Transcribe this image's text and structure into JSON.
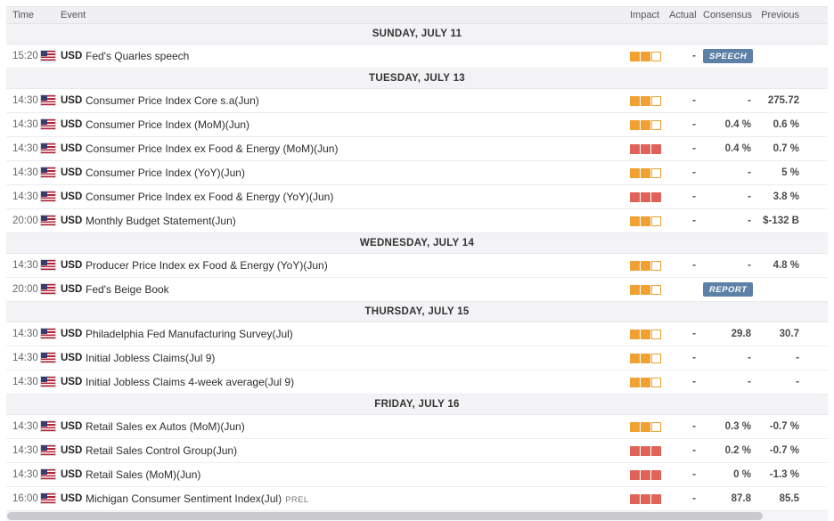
{
  "header": {
    "time": "Time",
    "event": "Event",
    "impact": "Impact",
    "actual": "Actual",
    "consensus": "Consensus",
    "previous": "Previous"
  },
  "colors": {
    "impact_medium": "#f0a132",
    "impact_high": "#e0635a",
    "badge_bg": "#5d80a7"
  },
  "sections": [
    {
      "date": "SUNDAY, JULY 11",
      "rows": [
        {
          "time": "15:20",
          "currency": "USD",
          "event": "Fed's Quarles speech",
          "impact": "medium",
          "actual": "-",
          "badge": "SPEECH",
          "consensus": "",
          "previous": ""
        }
      ]
    },
    {
      "date": "TUESDAY, JULY 13",
      "rows": [
        {
          "time": "14:30",
          "currency": "USD",
          "event": "Consumer Price Index Core s.a(Jun)",
          "impact": "medium",
          "actual": "-",
          "consensus": "-",
          "previous": "275.72"
        },
        {
          "time": "14:30",
          "currency": "USD",
          "event": "Consumer Price Index (MoM)(Jun)",
          "impact": "medium",
          "actual": "-",
          "consensus": "0.4 %",
          "previous": "0.6 %"
        },
        {
          "time": "14:30",
          "currency": "USD",
          "event": "Consumer Price Index ex Food & Energy (MoM)(Jun)",
          "impact": "high",
          "actual": "-",
          "consensus": "0.4 %",
          "previous": "0.7 %"
        },
        {
          "time": "14:30",
          "currency": "USD",
          "event": "Consumer Price Index (YoY)(Jun)",
          "impact": "medium",
          "actual": "-",
          "consensus": "-",
          "previous": "5 %"
        },
        {
          "time": "14:30",
          "currency": "USD",
          "event": "Consumer Price Index ex Food & Energy (YoY)(Jun)",
          "impact": "high",
          "actual": "-",
          "consensus": "-",
          "previous": "3.8 %"
        },
        {
          "time": "20:00",
          "currency": "USD",
          "event": "Monthly Budget Statement(Jun)",
          "impact": "medium",
          "actual": "-",
          "consensus": "-",
          "previous": "$-132 B"
        }
      ]
    },
    {
      "date": "WEDNESDAY, JULY 14",
      "rows": [
        {
          "time": "14:30",
          "currency": "USD",
          "event": "Producer Price Index ex Food & Energy (YoY)(Jun)",
          "impact": "medium",
          "actual": "-",
          "consensus": "-",
          "previous": "4.8 %"
        },
        {
          "time": "20:00",
          "currency": "USD",
          "event": "Fed's Beige Book",
          "impact": "medium",
          "actual": "",
          "badge": "REPORT",
          "consensus": "",
          "previous": ""
        }
      ]
    },
    {
      "date": "THURSDAY, JULY 15",
      "rows": [
        {
          "time": "14:30",
          "currency": "USD",
          "event": "Philadelphia Fed Manufacturing Survey(Jul)",
          "impact": "medium",
          "actual": "-",
          "consensus": "29.8",
          "previous": "30.7"
        },
        {
          "time": "14:30",
          "currency": "USD",
          "event": "Initial Jobless Claims(Jul 9)",
          "impact": "medium",
          "actual": "-",
          "consensus": "-",
          "previous": "-"
        },
        {
          "time": "14:30",
          "currency": "USD",
          "event": "Initial Jobless Claims 4-week average(Jul 9)",
          "impact": "medium",
          "actual": "-",
          "consensus": "-",
          "previous": "-"
        }
      ]
    },
    {
      "date": "FRIDAY, JULY 16",
      "rows": [
        {
          "time": "14:30",
          "currency": "USD",
          "event": "Retail Sales ex Autos (MoM)(Jun)",
          "impact": "medium",
          "actual": "-",
          "consensus": "0.3 %",
          "previous": "-0.7 %"
        },
        {
          "time": "14:30",
          "currency": "USD",
          "event": "Retail Sales Control Group(Jun)",
          "impact": "high",
          "actual": "-",
          "consensus": "0.2 %",
          "previous": "-0.7 %"
        },
        {
          "time": "14:30",
          "currency": "USD",
          "event": "Retail Sales (MoM)(Jun)",
          "impact": "high",
          "actual": "-",
          "consensus": "0 %",
          "previous": "-1.3 %"
        },
        {
          "time": "16:00",
          "currency": "USD",
          "event": "Michigan Consumer Sentiment Index(Jul)",
          "suffix": "PREL",
          "impact": "high",
          "actual": "-",
          "consensus": "87.8",
          "previous": "85.5"
        }
      ]
    }
  ]
}
